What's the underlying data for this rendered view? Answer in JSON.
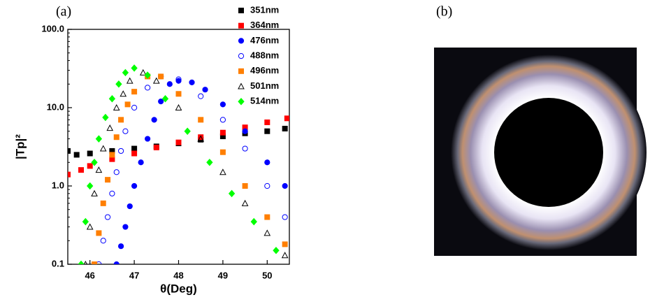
{
  "chart_data": {
    "type": "scatter",
    "panel_labels": [
      "(a)",
      "(b)"
    ],
    "x_label": "θ(Deg)",
    "y_label": "|Tp|²",
    "xlim": [
      45.5,
      50.5
    ],
    "xticks": [
      46,
      47,
      48,
      49,
      50
    ],
    "ylim": [
      0.1,
      100
    ],
    "log_y": true,
    "yticks": [
      0.1,
      {
        "value": 1,
        "label": "1.0"
      },
      {
        "value": 10,
        "label": "10.0"
      },
      {
        "value": 100,
        "label": "100.0"
      }
    ],
    "legend": "top-right",
    "series": [
      {
        "name": "351nm",
        "color": "#000000",
        "marker": "square",
        "filled": true,
        "x": [
          45.5,
          45.7,
          46,
          46.5,
          47,
          47.5,
          48,
          48.5,
          49,
          49.5,
          50,
          50.4
        ],
        "values": [
          2.8,
          2.5,
          2.6,
          2.8,
          3.0,
          3.2,
          3.5,
          3.9,
          4.3,
          4.7,
          5.0,
          5.4
        ]
      },
      {
        "name": "364nm",
        "color": "#ff0000",
        "marker": "square",
        "filled": true,
        "x": [
          45.5,
          45.8,
          46,
          46.5,
          47,
          47.5,
          48,
          48.5,
          49,
          49.5,
          50,
          50.45
        ],
        "values": [
          1.4,
          1.6,
          1.8,
          2.2,
          2.6,
          3.1,
          3.6,
          4.2,
          4.8,
          5.6,
          6.5,
          7.3
        ]
      },
      {
        "name": "476nm",
        "color": "#0000ff",
        "marker": "circle",
        "filled": true,
        "x": [
          46.6,
          46.7,
          46.8,
          46.9,
          47,
          47.15,
          47.3,
          47.45,
          47.6,
          47.8,
          48,
          48.3,
          48.6,
          49,
          49.5,
          50,
          50.4
        ],
        "values": [
          0.1,
          0.17,
          0.3,
          0.55,
          1.0,
          2.0,
          4,
          7,
          12,
          20,
          22,
          21,
          17,
          11,
          5,
          2,
          1.0
        ]
      },
      {
        "name": "488nm",
        "color": "#0000ff",
        "marker": "circle",
        "filled": false,
        "x": [
          46.2,
          46.3,
          46.4,
          46.5,
          46.6,
          46.7,
          46.8,
          47,
          47.3,
          47.6,
          48,
          48.5,
          49,
          49.5,
          50,
          50.4
        ],
        "values": [
          0.1,
          0.2,
          0.4,
          0.8,
          1.5,
          2.8,
          5,
          10,
          18,
          25,
          23,
          14,
          7,
          3,
          1.0,
          0.4
        ]
      },
      {
        "name": "496nm",
        "color": "#ff7f00",
        "marker": "square",
        "filled": true,
        "x": [
          46.1,
          46.2,
          46.3,
          46.4,
          46.5,
          46.6,
          46.7,
          46.85,
          47,
          47.3,
          47.6,
          48,
          48.5,
          49,
          49.5,
          50,
          50.4
        ],
        "values": [
          0.1,
          0.25,
          0.6,
          1.2,
          2.5,
          4.2,
          7,
          11,
          16,
          25,
          25,
          15,
          7,
          2.7,
          1.0,
          0.4,
          0.18
        ]
      },
      {
        "name": "501nm",
        "color": "#000000",
        "marker": "triangle",
        "filled": false,
        "x": [
          45.9,
          46,
          46.1,
          46.2,
          46.3,
          46.45,
          46.6,
          46.75,
          46.9,
          47.2,
          47.5,
          48,
          48.5,
          49,
          49.5,
          50,
          50.4
        ],
        "values": [
          0.1,
          0.3,
          0.8,
          1.6,
          3,
          5.5,
          10,
          15,
          22,
          28,
          22,
          10,
          4,
          1.5,
          0.6,
          0.25,
          0.13
        ]
      },
      {
        "name": "514nm",
        "color": "#00ff00",
        "marker": "diamond",
        "filled": true,
        "x": [
          45.8,
          45.9,
          46,
          46.1,
          46.2,
          46.35,
          46.5,
          46.65,
          46.8,
          47,
          47.3,
          47.7,
          48.2,
          48.7,
          49.2,
          49.7,
          50.2
        ],
        "values": [
          0.1,
          0.35,
          1.0,
          2.0,
          4,
          7.5,
          13,
          20,
          28,
          32,
          26,
          13,
          5,
          2,
          0.8,
          0.35,
          0.15
        ]
      }
    ]
  }
}
